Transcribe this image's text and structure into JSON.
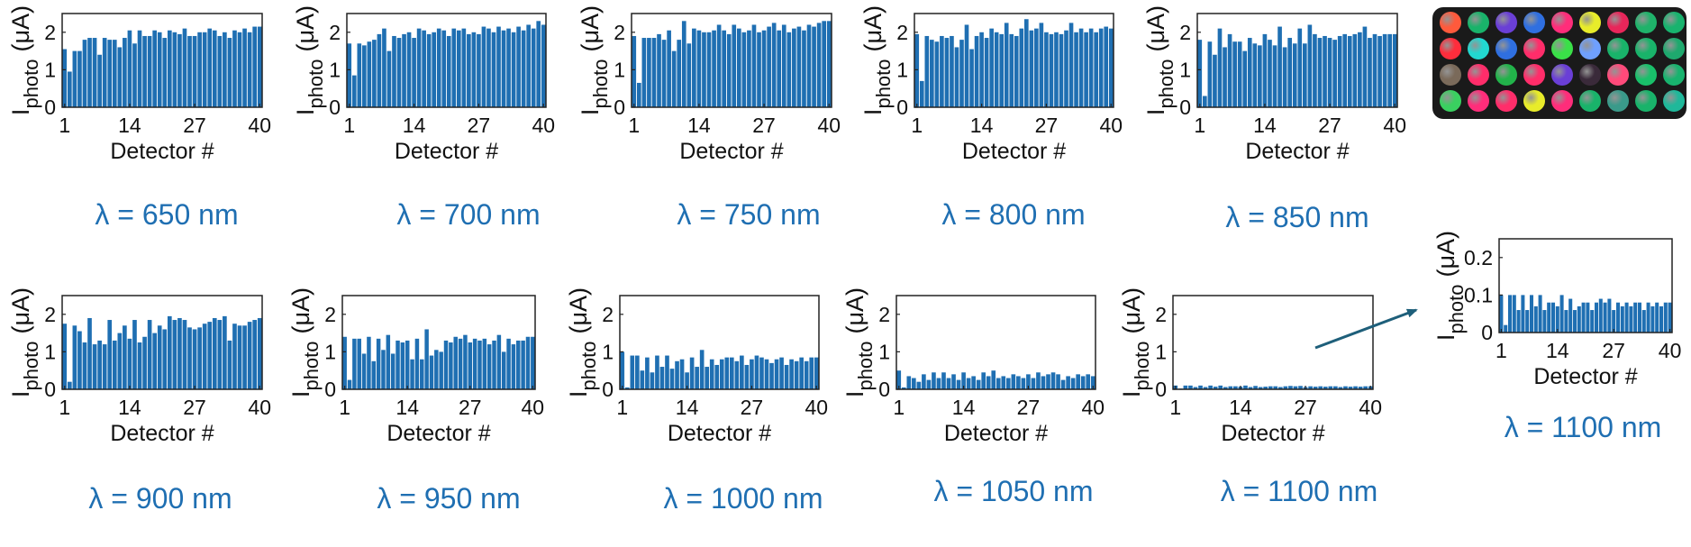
{
  "photo": {
    "rows": [
      [
        "#ff5a3c",
        "#19b36a",
        "#6a3fd6",
        "#2f6fe0",
        "#ff2d7a",
        "#e8ec2a",
        "#e8265a",
        "#1fb36a",
        "#18b36e"
      ],
      [
        "#ff2d3c",
        "#22d8d0",
        "#2f6fe0",
        "#ff2d6a",
        "#3ae048",
        "#6fa0ff",
        "#19b36a",
        "#19b36a",
        "#1ea96e"
      ],
      [
        "#7a6a5a",
        "#ff2d6a",
        "#22b34a",
        "#ff2d6a",
        "#6a3fd6",
        "#3a2a3a",
        "#ff4a7a",
        "#19c06a",
        "#18b36e"
      ],
      [
        "#3ad060",
        "#ff2d7a",
        "#ff2d6a",
        "#e8ec2a",
        "#ff2d7a",
        "#19b36a",
        "#3a9a8a",
        "#19b36a",
        "#1fb89a"
      ]
    ]
  },
  "chart_data": [
    {
      "type": "bar",
      "caption": "λ = 650 nm",
      "xlabel": "Detector #",
      "ylabel_main": "I",
      "ylabel_sub": "photo",
      "ylabel_unit": "(μA)",
      "ylim": [
        0,
        2.5
      ],
      "yticks": [
        0,
        1,
        2
      ],
      "ytick_labels": [
        "0",
        "1",
        "2"
      ],
      "xticks": [
        1,
        14,
        27,
        40
      ],
      "xtick_labels": [
        "1",
        "14",
        "27",
        "40"
      ],
      "values": [
        1.55,
        0.95,
        1.5,
        1.5,
        1.8,
        1.85,
        1.85,
        1.4,
        1.85,
        1.8,
        1.8,
        1.6,
        1.85,
        2.05,
        1.7,
        2.05,
        1.9,
        1.9,
        2.05,
        2.0,
        1.85,
        2.05,
        2.0,
        1.95,
        2.1,
        1.9,
        1.9,
        2.0,
        2.0,
        2.1,
        2.05,
        1.9,
        2.0,
        1.85,
        2.05,
        2.0,
        2.1,
        2.0,
        2.15,
        2.15
      ]
    },
    {
      "type": "bar",
      "caption": "λ = 700 nm",
      "xlabel": "Detector #",
      "ylabel_main": "I",
      "ylabel_sub": "photo",
      "ylabel_unit": "(μA)",
      "ylim": [
        0,
        2.5
      ],
      "yticks": [
        0,
        1,
        2
      ],
      "ytick_labels": [
        "0",
        "1",
        "2"
      ],
      "xticks": [
        1,
        14,
        27,
        40
      ],
      "xtick_labels": [
        "1",
        "14",
        "27",
        "40"
      ],
      "values": [
        1.7,
        0.85,
        1.7,
        1.65,
        1.75,
        1.8,
        1.95,
        2.1,
        1.5,
        1.9,
        1.85,
        1.95,
        2.0,
        1.85,
        2.1,
        2.05,
        1.95,
        2.0,
        2.1,
        2.05,
        1.9,
        2.1,
        2.05,
        2.1,
        1.95,
        2.0,
        1.95,
        2.15,
        2.1,
        2.0,
        2.15,
        2.05,
        2.1,
        2.0,
        2.15,
        2.05,
        2.2,
        2.1,
        2.3,
        2.2
      ]
    },
    {
      "type": "bar",
      "caption": "λ = 750 nm",
      "xlabel": "Detector #",
      "ylabel_main": "I",
      "ylabel_sub": "photo",
      "ylabel_unit": "(μA)",
      "ylim": [
        0,
        2.5
      ],
      "yticks": [
        0,
        1,
        2
      ],
      "ytick_labels": [
        "0",
        "1",
        "2"
      ],
      "xticks": [
        1,
        14,
        27,
        40
      ],
      "xtick_labels": [
        "1",
        "14",
        "27",
        "40"
      ],
      "values": [
        1.9,
        0.65,
        1.85,
        1.85,
        1.85,
        1.95,
        1.8,
        2.05,
        1.5,
        1.8,
        2.3,
        1.7,
        2.1,
        2.05,
        2.0,
        2.0,
        2.05,
        2.2,
        2.05,
        1.95,
        2.2,
        2.1,
        2.0,
        2.05,
        2.2,
        2.0,
        2.05,
        2.15,
        2.25,
        2.05,
        2.2,
        2.0,
        2.1,
        2.15,
        2.05,
        2.2,
        2.15,
        2.25,
        2.3,
        2.3
      ]
    },
    {
      "type": "bar",
      "caption": "λ = 800 nm",
      "xlabel": "Detector #",
      "ylabel_main": "I",
      "ylabel_sub": "photo",
      "ylabel_unit": "(μA)",
      "ylim": [
        0,
        2.5
      ],
      "yticks": [
        0,
        1,
        2
      ],
      "ytick_labels": [
        "0",
        "1",
        "2"
      ],
      "xticks": [
        1,
        14,
        27,
        40
      ],
      "xtick_labels": [
        "1",
        "14",
        "27",
        "40"
      ],
      "values": [
        1.95,
        0.7,
        1.9,
        1.8,
        1.75,
        1.9,
        1.85,
        1.9,
        1.6,
        1.8,
        2.2,
        1.55,
        1.9,
        2.0,
        1.85,
        2.1,
        2.0,
        1.95,
        2.25,
        1.95,
        1.9,
        2.1,
        2.35,
        2.05,
        2.1,
        2.25,
        2.0,
        1.95,
        2.0,
        1.95,
        2.05,
        2.25,
        2.0,
        2.1,
        2.0,
        2.1,
        2.0,
        2.1,
        2.15,
        2.1
      ]
    },
    {
      "type": "bar",
      "caption": "λ = 850 nm",
      "xlabel": "Detector #",
      "ylabel_main": "I",
      "ylabel_sub": "photo",
      "ylabel_unit": "(μA)",
      "ylim": [
        0,
        2.5
      ],
      "yticks": [
        0,
        1,
        2
      ],
      "ytick_labels": [
        "0",
        "1",
        "2"
      ],
      "xticks": [
        1,
        14,
        27,
        40
      ],
      "xtick_labels": [
        "1",
        "14",
        "27",
        "40"
      ],
      "values": [
        1.8,
        0.3,
        1.75,
        1.4,
        2.1,
        1.6,
        1.95,
        1.75,
        1.75,
        1.5,
        1.85,
        1.7,
        1.65,
        1.95,
        1.8,
        1.65,
        2.15,
        1.6,
        1.85,
        1.7,
        2.1,
        1.7,
        2.2,
        1.95,
        1.85,
        1.9,
        1.85,
        1.8,
        1.9,
        1.95,
        1.9,
        1.95,
        2.0,
        2.15,
        1.85,
        1.95,
        1.9,
        1.95,
        1.95,
        1.95
      ]
    },
    {
      "type": "bar",
      "caption": "λ = 900 nm",
      "xlabel": "Detector #",
      "ylabel_main": "I",
      "ylabel_sub": "photo",
      "ylabel_unit": "(μA)",
      "ylim": [
        0,
        2.5
      ],
      "yticks": [
        0,
        1,
        2
      ],
      "ytick_labels": [
        "0",
        "1",
        "2"
      ],
      "xticks": [
        1,
        14,
        27,
        40
      ],
      "xtick_labels": [
        "1",
        "14",
        "27",
        "40"
      ],
      "values": [
        1.75,
        0.2,
        1.7,
        1.55,
        1.25,
        1.9,
        1.2,
        1.3,
        1.2,
        1.85,
        1.3,
        1.5,
        1.7,
        1.35,
        1.85,
        1.25,
        1.4,
        1.85,
        1.5,
        1.7,
        1.6,
        1.95,
        1.85,
        1.9,
        1.85,
        1.65,
        1.6,
        1.65,
        1.75,
        1.8,
        1.9,
        1.85,
        1.95,
        1.3,
        1.75,
        1.7,
        1.7,
        1.8,
        1.85,
        1.9
      ]
    },
    {
      "type": "bar",
      "caption": "λ = 950 nm",
      "xlabel": "Detector #",
      "ylabel_main": "I",
      "ylabel_sub": "photo",
      "ylabel_unit": "(μA)",
      "ylim": [
        0,
        2.5
      ],
      "yticks": [
        0,
        1,
        2
      ],
      "ytick_labels": [
        "0",
        "1",
        "2"
      ],
      "xticks": [
        1,
        14,
        27,
        40
      ],
      "xtick_labels": [
        "1",
        "14",
        "27",
        "40"
      ],
      "values": [
        1.4,
        0.25,
        1.35,
        1.35,
        0.95,
        1.4,
        0.75,
        1.35,
        1.05,
        1.45,
        0.95,
        1.3,
        1.25,
        1.3,
        0.8,
        1.35,
        0.8,
        1.6,
        0.9,
        1.05,
        1.0,
        1.3,
        1.25,
        1.4,
        1.35,
        1.45,
        1.25,
        1.35,
        1.3,
        1.35,
        1.2,
        1.3,
        1.45,
        1.0,
        1.35,
        1.2,
        1.3,
        1.3,
        1.4,
        1.4
      ]
    },
    {
      "type": "bar",
      "caption": "λ = 1000 nm",
      "xlabel": "Detector #",
      "ylabel_main": "I",
      "ylabel_sub": "photo",
      "ylabel_unit": "(μA)",
      "ylim": [
        0,
        2.5
      ],
      "yticks": [
        0,
        1,
        2
      ],
      "ytick_labels": [
        "0",
        "1",
        "2"
      ],
      "xticks": [
        1,
        14,
        27,
        40
      ],
      "xtick_labels": [
        "1",
        "14",
        "27",
        "40"
      ],
      "values": [
        1.0,
        0.05,
        0.9,
        0.9,
        0.5,
        0.85,
        0.45,
        0.9,
        0.6,
        0.9,
        0.55,
        0.75,
        0.8,
        0.45,
        0.85,
        0.6,
        1.05,
        0.6,
        0.8,
        0.65,
        0.8,
        0.85,
        0.85,
        0.75,
        0.9,
        0.65,
        0.8,
        0.9,
        0.85,
        0.8,
        0.7,
        0.8,
        0.85,
        0.65,
        0.8,
        0.75,
        0.85,
        0.75,
        0.85,
        0.85
      ]
    },
    {
      "type": "bar",
      "caption": "λ = 1050 nm",
      "xlabel": "Detector #",
      "ylabel_main": "I",
      "ylabel_sub": "photo",
      "ylabel_unit": "(μA)",
      "ylim": [
        0,
        2.5
      ],
      "yticks": [
        0,
        1,
        2
      ],
      "ytick_labels": [
        "0",
        "1",
        "2"
      ],
      "xticks": [
        1,
        14,
        27,
        40
      ],
      "xtick_labels": [
        "1",
        "14",
        "27",
        "40"
      ],
      "values": [
        0.5,
        0.05,
        0.35,
        0.3,
        0.2,
        0.4,
        0.25,
        0.45,
        0.3,
        0.45,
        0.3,
        0.4,
        0.25,
        0.45,
        0.3,
        0.35,
        0.25,
        0.45,
        0.35,
        0.5,
        0.3,
        0.35,
        0.3,
        0.4,
        0.35,
        0.3,
        0.4,
        0.3,
        0.45,
        0.35,
        0.4,
        0.45,
        0.4,
        0.25,
        0.35,
        0.3,
        0.4,
        0.35,
        0.4,
        0.35
      ]
    },
    {
      "type": "bar",
      "caption": "λ = 1100 nm",
      "xlabel": "Detector #",
      "ylabel_main": "I",
      "ylabel_sub": "photo",
      "ylabel_unit": "(μA)",
      "ylim": [
        0,
        2.5
      ],
      "yticks": [
        0,
        1,
        2
      ],
      "ytick_labels": [
        "0",
        "1",
        "2"
      ],
      "xticks": [
        1,
        14,
        27,
        40
      ],
      "xtick_labels": [
        "1",
        "14",
        "27",
        "40"
      ],
      "values": [
        0.1,
        0.02,
        0.1,
        0.1,
        0.06,
        0.1,
        0.06,
        0.1,
        0.07,
        0.1,
        0.06,
        0.08,
        0.08,
        0.07,
        0.1,
        0.06,
        0.09,
        0.06,
        0.07,
        0.08,
        0.08,
        0.06,
        0.08,
        0.09,
        0.08,
        0.09,
        0.06,
        0.08,
        0.07,
        0.08,
        0.07,
        0.08,
        0.08,
        0.06,
        0.08,
        0.07,
        0.08,
        0.07,
        0.08,
        0.08
      ]
    },
    {
      "type": "bar",
      "caption": "λ = 1100 nm",
      "xlabel": "Detector #",
      "ylabel_main": "I",
      "ylabel_sub": "photo",
      "ylabel_unit": "(μA)",
      "ylim": [
        0,
        0.25
      ],
      "yticks": [
        0,
        0.1,
        0.2
      ],
      "ytick_labels": [
        "0",
        "0.1",
        "0.2"
      ],
      "xticks": [
        1,
        14,
        27,
        40
      ],
      "xtick_labels": [
        "1",
        "14",
        "27",
        "40"
      ],
      "values": [
        0.1,
        0.02,
        0.1,
        0.1,
        0.06,
        0.1,
        0.06,
        0.1,
        0.07,
        0.1,
        0.06,
        0.08,
        0.08,
        0.07,
        0.1,
        0.06,
        0.09,
        0.06,
        0.07,
        0.08,
        0.08,
        0.06,
        0.08,
        0.09,
        0.08,
        0.09,
        0.06,
        0.08,
        0.07,
        0.08,
        0.07,
        0.08,
        0.08,
        0.06,
        0.08,
        0.07,
        0.08,
        0.07,
        0.08,
        0.08
      ]
    }
  ]
}
